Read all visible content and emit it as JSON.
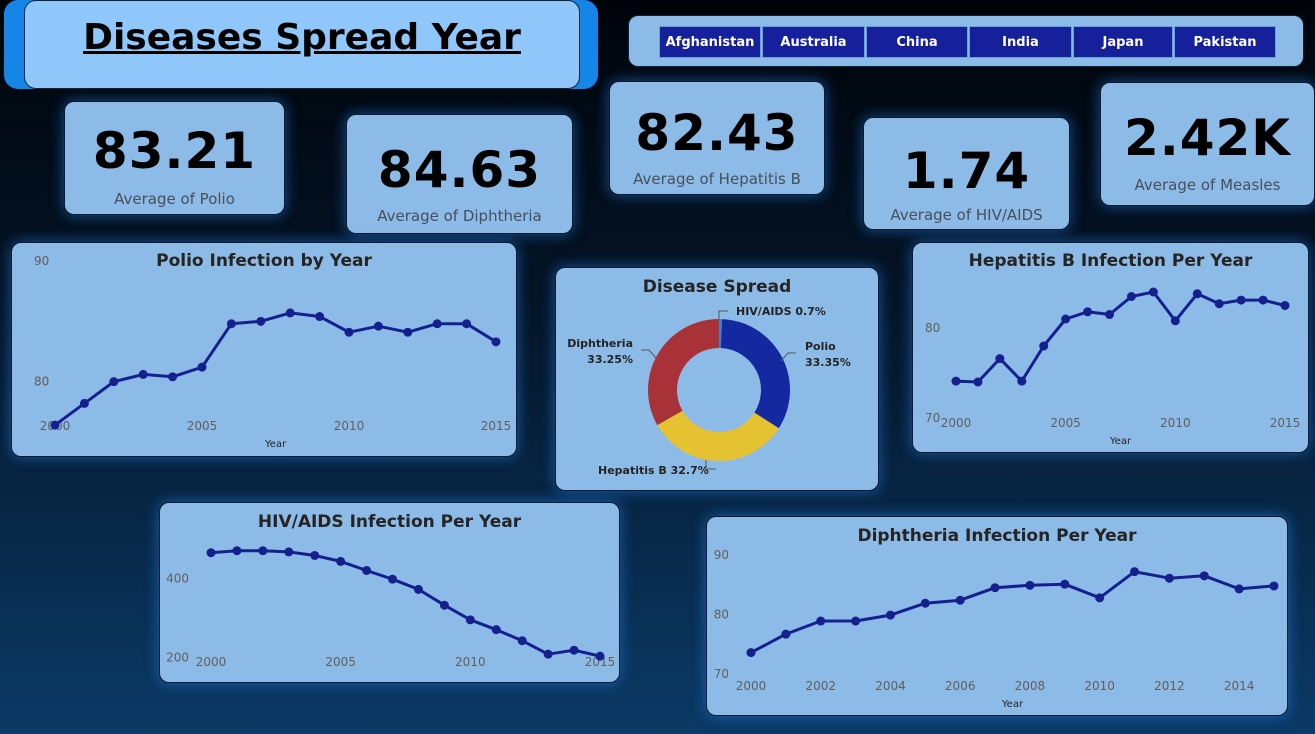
{
  "header": {
    "title": "Diseases Spread Year"
  },
  "slicer": {
    "countries": [
      "Afghanistan",
      "Australia",
      "China",
      "India",
      "Japan",
      "Pakistan"
    ]
  },
  "kpis": {
    "polio": {
      "value": "83.21",
      "label": "Average of Polio"
    },
    "diphtheria": {
      "value": "84.63",
      "label": "Average of Diphtheria"
    },
    "hepatitis_b": {
      "value": "82.43",
      "label": "Average of Hepatitis B"
    },
    "hiv": {
      "value": "1.74",
      "label": "Average of  HIV/AIDS"
    },
    "measles": {
      "value": "2.42K",
      "label": "Average of Measles"
    }
  },
  "colors": {
    "line": "#15208f",
    "polio": "#1428a0",
    "hepatitis_b": "#e5c232",
    "diphtheria": "#a83238",
    "hiv": "#3b82d4"
  },
  "chart_data": [
    {
      "id": "polio",
      "type": "line",
      "title": "Polio Infection by Year",
      "xlabel": "Year",
      "ylabel": "",
      "x": [
        2000,
        2001,
        2002,
        2003,
        2004,
        2005,
        2006,
        2007,
        2008,
        2009,
        2010,
        2011,
        2012,
        2013,
        2014,
        2015
      ],
      "values": [
        76.4,
        78.2,
        80.0,
        80.6,
        80.4,
        81.2,
        84.8,
        85.0,
        85.7,
        85.4,
        84.1,
        84.6,
        84.1,
        84.8,
        84.8,
        83.3
      ],
      "yticks": [
        80,
        90
      ],
      "xticks": [
        2000,
        2005,
        2010,
        2015
      ],
      "ylim": [
        75,
        90
      ],
      "grid": false
    },
    {
      "id": "hepb",
      "type": "line",
      "title": "Hepatitis B Infection Per Year",
      "xlabel": "Year",
      "ylabel": "",
      "x": [
        2000,
        2001,
        2002,
        2003,
        2004,
        2005,
        2006,
        2007,
        2008,
        2009,
        2010,
        2011,
        2012,
        2013,
        2014,
        2015
      ],
      "values": [
        74.1,
        74.0,
        76.6,
        74.1,
        78.0,
        81.0,
        81.8,
        81.5,
        83.5,
        84.0,
        80.8,
        83.8,
        82.7,
        83.1,
        83.1,
        82.5
      ],
      "yticks": [
        70,
        80
      ],
      "xticks": [
        2000,
        2005,
        2010,
        2015
      ],
      "ylim": [
        70,
        86
      ],
      "grid": false
    },
    {
      "id": "hiv",
      "type": "line",
      "title": "HIV/AIDS Infection Per Year",
      "xlabel": "",
      "ylabel": "",
      "x": [
        2000,
        2001,
        2002,
        2003,
        2004,
        2005,
        2006,
        2007,
        2008,
        2009,
        2010,
        2011,
        2012,
        2014,
        2013,
        2015
      ],
      "values": [
        465,
        470,
        470,
        467,
        458,
        443,
        420,
        398,
        372,
        332,
        295,
        270,
        242,
        218,
        208,
        203
      ],
      "yticks": [
        200,
        400
      ],
      "xticks": [
        2000,
        2005,
        2010,
        2015
      ],
      "ylim": [
        140,
        520
      ],
      "grid": false
    },
    {
      "id": "diph",
      "type": "line",
      "title": "Diphtheria Infection Per Year",
      "xlabel": "Year",
      "ylabel": "",
      "x": [
        2000,
        2001,
        2002,
        2003,
        2004,
        2005,
        2006,
        2007,
        2008,
        2009,
        2010,
        2011,
        2012,
        2013,
        2014,
        2015
      ],
      "values": [
        73.6,
        76.7,
        78.9,
        78.9,
        79.9,
        81.9,
        82.4,
        84.5,
        84.9,
        85.1,
        82.8,
        87.2,
        86.1,
        86.5,
        84.3,
        84.8
      ],
      "yticks": [
        70,
        80,
        90
      ],
      "xticks": [
        2000,
        2002,
        2004,
        2006,
        2008,
        2010,
        2012,
        2014
      ],
      "ylim": [
        70,
        90
      ],
      "grid": false
    },
    {
      "id": "donut",
      "type": "pie",
      "title": "Disease Spread",
      "slices": [
        {
          "name": "HIV/AIDS",
          "value": 0.7,
          "label": "HIV/AIDS 0.7%"
        },
        {
          "name": "Polio",
          "value": 33.35,
          "label1": "Polio",
          "label2": "33.35%"
        },
        {
          "name": "Hepatitis B",
          "value": 32.7,
          "label": "Hepatitis B 32.7%"
        },
        {
          "name": "Diphtheria",
          "value": 33.25,
          "label1": "Diphtheria",
          "label2": "33.25%"
        }
      ]
    }
  ]
}
